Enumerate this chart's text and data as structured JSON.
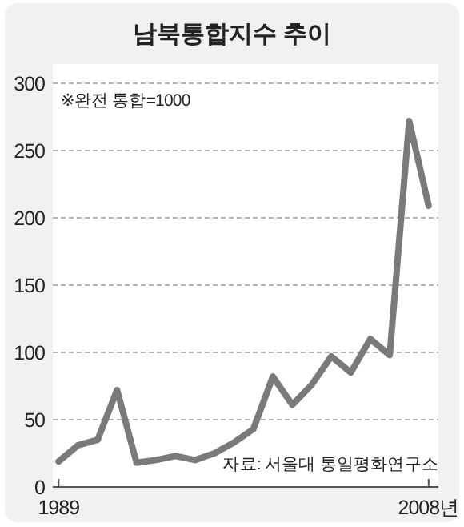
{
  "chart_data": {
    "type": "line",
    "title": "남북통합지수 추이",
    "x": [
      1989,
      1990,
      1991,
      1992,
      1993,
      1994,
      1995,
      1996,
      1997,
      1998,
      1999,
      2000,
      2001,
      2002,
      2003,
      2004,
      2005,
      2006,
      2007,
      2008
    ],
    "series": [
      {
        "color": "#7a7a7a",
        "values": [
          19,
          31,
          35,
          72,
          18,
          20,
          23,
          20,
          25,
          33,
          43,
          82,
          61,
          76,
          97,
          85,
          110,
          98,
          272,
          209
        ]
      }
    ],
    "xlim": [
      1988.7,
      2008.5
    ],
    "xticks": [
      {
        "value": 1989,
        "label": "1989"
      },
      {
        "value": 2008,
        "label": "2008년"
      }
    ],
    "ylim": [
      0,
      300
    ],
    "yticks": [
      0,
      50,
      100,
      150,
      200,
      250,
      300
    ],
    "grid": "y",
    "marker": "none",
    "line_style": "solid",
    "annotations": [
      "※완전 통합=1000",
      "자료: 서울대 통일평화연구소"
    ]
  }
}
